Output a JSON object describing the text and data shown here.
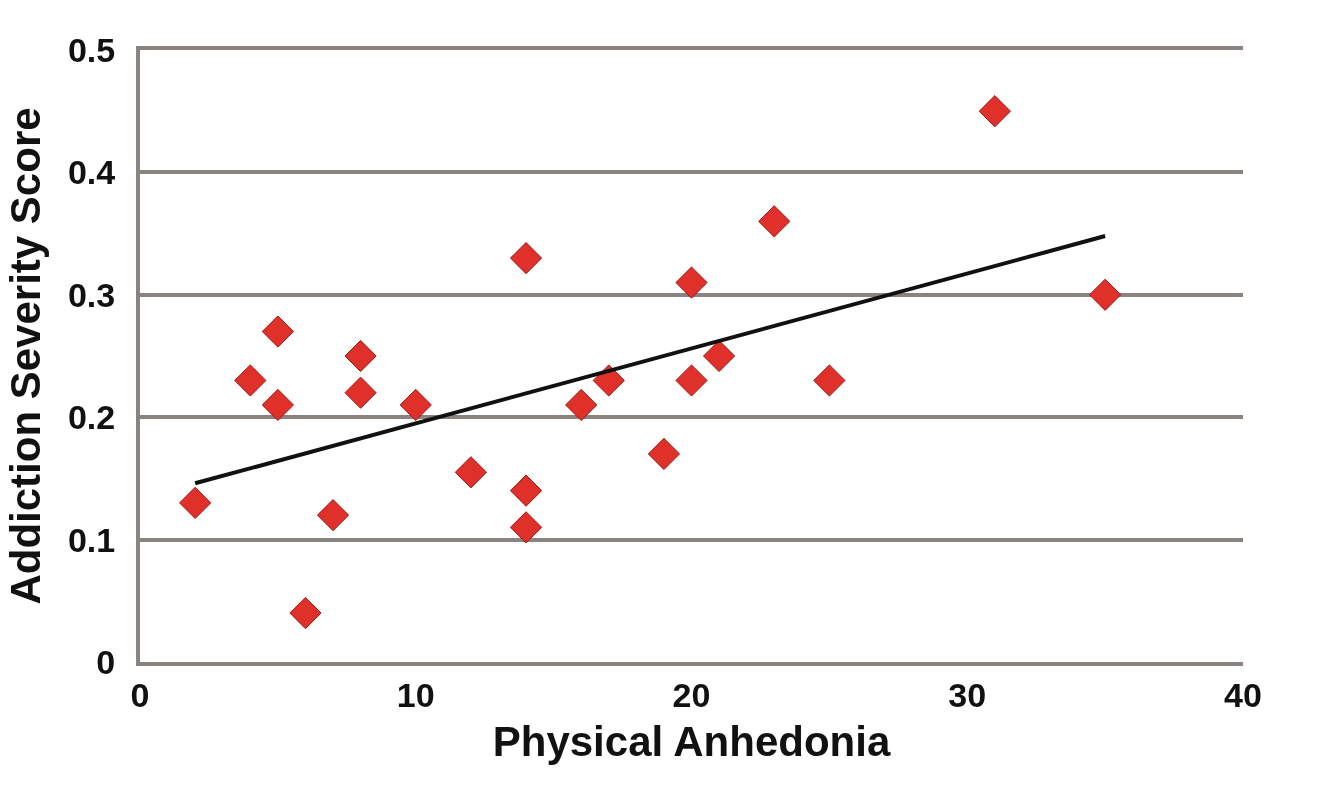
{
  "chart_data": {
    "type": "scatter",
    "xlabel": "Physical Anhedonia",
    "ylabel": "Addiction Severity Score",
    "xlim": [
      0,
      40
    ],
    "xticks": [
      0,
      10,
      20,
      30,
      40
    ],
    "ylim": [
      0,
      0.5
    ],
    "yticks": [
      0,
      0.1,
      0.2,
      0.3,
      0.4,
      0.5
    ],
    "grid": "y",
    "series": [
      {
        "marker": "diamond",
        "color": "#e0302a",
        "x": [
          2,
          4,
          5,
          5,
          6,
          7,
          8,
          8,
          10,
          12,
          14,
          14,
          14,
          16,
          17,
          19,
          20,
          20,
          21,
          23,
          25,
          31,
          35
        ],
        "values": [
          0.13,
          0.23,
          0.27,
          0.21,
          0.04,
          0.12,
          0.25,
          0.22,
          0.21,
          0.155,
          0.33,
          0.14,
          0.11,
          0.21,
          0.23,
          0.17,
          0.31,
          0.23,
          0.25,
          0.36,
          0.23,
          0.45,
          0.3
        ]
      },
      {
        "type": "line",
        "marker": "none",
        "line_style": "solid",
        "color": "#111111",
        "x": [
          2,
          35
        ],
        "values": [
          0.146,
          0.348
        ]
      }
    ]
  }
}
